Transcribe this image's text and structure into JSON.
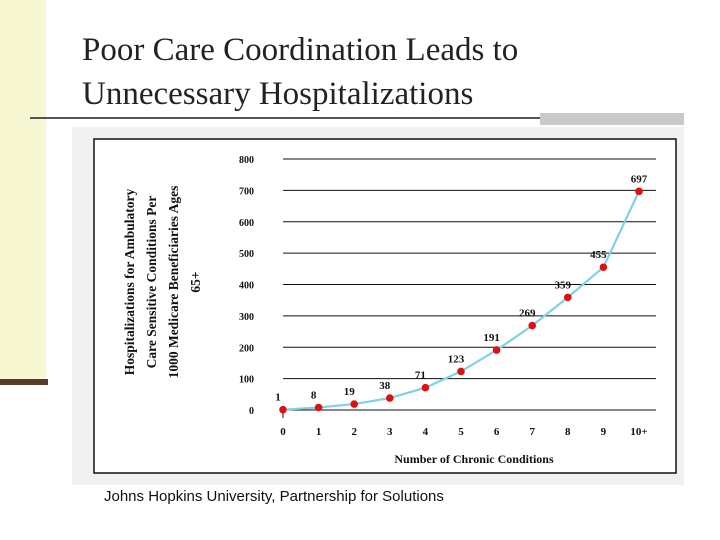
{
  "slide": {
    "title_lines": [
      "Poor Care Coordination Leads to",
      "Unnecessary Hospitalizations"
    ],
    "source": "Johns Hopkins University, Partnership for Solutions"
  },
  "chart_data": {
    "type": "line",
    "title": "",
    "xlabel": "Number of Chronic Conditions",
    "ylabel_lines": [
      "Hospitalizations for Ambulatory",
      "Care Sensitive Conditions Per",
      "1000 Medicare Beneficiaries Ages",
      "65+"
    ],
    "categories": [
      "0",
      "1",
      "2",
      "3",
      "4",
      "5",
      "6",
      "7",
      "8",
      "9",
      "10+"
    ],
    "series": [
      {
        "values": [
          1,
          8,
          19,
          38,
          71,
          123,
          191,
          269,
          359,
          455,
          697
        ]
      }
    ],
    "data_labels": [
      "1",
      "8",
      "19",
      "38",
      "71",
      "123",
      "191",
      "269",
      "359",
      "455",
      "697"
    ],
    "y_ticks": [
      "0",
      "100",
      "200",
      "300",
      "400",
      "500",
      "600",
      "700",
      "800"
    ],
    "ylim": [
      0,
      800
    ],
    "grid": true,
    "line_color": "#7fd0e8",
    "marker_color": "#dd1111"
  }
}
